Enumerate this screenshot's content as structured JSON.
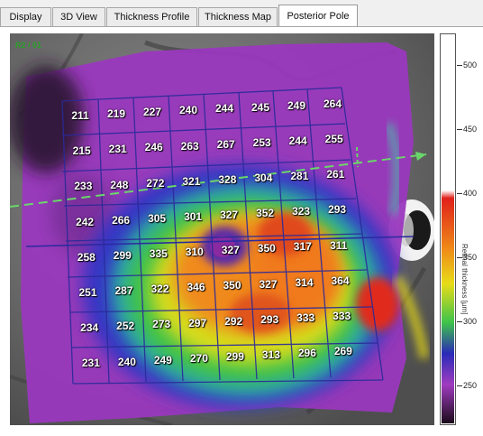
{
  "tabs": [
    {
      "label": "Display",
      "active": false
    },
    {
      "label": "3D View",
      "active": false
    },
    {
      "label": "Thickness Profile",
      "active": false
    },
    {
      "label": "Thickness Map",
      "active": false
    },
    {
      "label": "Posterior Pole",
      "active": true
    }
  ],
  "viewer": {
    "scan_label": "R2 / 01",
    "grid_values": [
      [
        211,
        219,
        227,
        240,
        244,
        245,
        249,
        264
      ],
      [
        215,
        231,
        246,
        263,
        267,
        253,
        244,
        255
      ],
      [
        233,
        248,
        272,
        321,
        328,
        304,
        281,
        261
      ],
      [
        242,
        266,
        305,
        301,
        327,
        352,
        323,
        293
      ],
      [
        258,
        299,
        335,
        310,
        327,
        350,
        317,
        311
      ],
      [
        251,
        287,
        322,
        346,
        350,
        327,
        314,
        364
      ],
      [
        234,
        252,
        273,
        297,
        292,
        293,
        333,
        333
      ],
      [
        231,
        240,
        249,
        270,
        299,
        313,
        296,
        269
      ]
    ]
  },
  "colorbar": {
    "ticks": [
      "500",
      "450",
      "400",
      "350",
      "300",
      "250"
    ],
    "axis_title": "Retinal thickness [µm]",
    "colors": {
      "top": "#ffffff",
      "red": "#e0201a",
      "orange": "#f08a18",
      "yellow": "#e8dc18",
      "green": "#3ec44a",
      "blue": "#2a2ab8",
      "purple": "#a03cc0",
      "bottom": "#1a0a1a"
    }
  }
}
